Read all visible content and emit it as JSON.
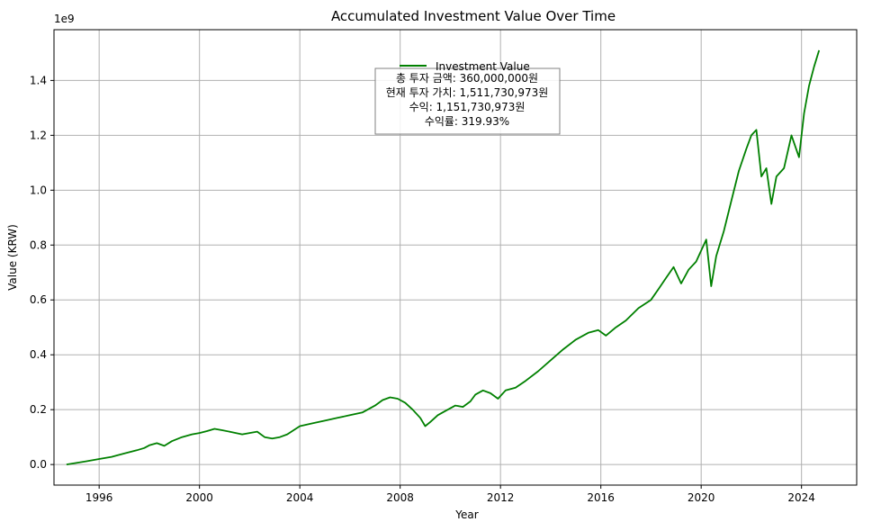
{
  "chart_data": {
    "type": "line",
    "title": "Accumulated Investment Value Over Time",
    "xlabel": "Year",
    "ylabel": "Value (KRW)",
    "y_offset_label": "1e9",
    "xlim": [
      1994.2,
      2026.2
    ],
    "ylim": [
      -0.075,
      1.585
    ],
    "y_unit_scale": "1e9",
    "grid": true,
    "line_color": "#008000",
    "x_ticks": [
      1996,
      2000,
      2004,
      2008,
      2012,
      2016,
      2020,
      2024
    ],
    "x_tick_labels": [
      "1996",
      "2000",
      "2004",
      "2008",
      "2012",
      "2016",
      "2020",
      "2024"
    ],
    "y_ticks": [
      0.0,
      0.2,
      0.4,
      0.6,
      0.8,
      1.0,
      1.2,
      1.4
    ],
    "y_tick_labels": [
      "0.0",
      "0.2",
      "0.4",
      "0.6",
      "0.8",
      "1.0",
      "1.2",
      "1.4"
    ],
    "legend": {
      "placement": "upper center",
      "entries": [
        "Investment Value"
      ],
      "annotation_lines": [
        "총 투자 금액: 360,000,000원",
        "현재 투자 가치: 1,511,730,973원",
        "수익: 1,151,730,973원",
        "수익률: 319.93%"
      ]
    },
    "series": [
      {
        "name": "Investment Value",
        "x": [
          1994.7,
          1995.5,
          1996.0,
          1996.5,
          1997.0,
          1997.5,
          1997.8,
          1998.0,
          1998.3,
          1998.6,
          1998.9,
          1999.3,
          1999.7,
          2000.0,
          2000.3,
          2000.6,
          2000.9,
          2001.3,
          2001.7,
          2002.0,
          2002.3,
          2002.6,
          2002.9,
          2003.2,
          2003.5,
          2004.0,
          2004.5,
          2005.0,
          2005.5,
          2006.0,
          2006.5,
          2007.0,
          2007.3,
          2007.6,
          2007.9,
          2008.2,
          2008.5,
          2008.8,
          2009.0,
          2009.2,
          2009.5,
          2009.8,
          2010.2,
          2010.5,
          2010.8,
          2011.0,
          2011.3,
          2011.6,
          2011.9,
          2012.2,
          2012.6,
          2013.0,
          2013.5,
          2014.0,
          2014.5,
          2015.0,
          2015.5,
          2015.9,
          2016.2,
          2016.6,
          2017.0,
          2017.5,
          2018.0,
          2018.3,
          2018.6,
          2018.9,
          2019.2,
          2019.5,
          2019.8,
          2020.0,
          2020.2,
          2020.4,
          2020.6,
          2020.9,
          2021.2,
          2021.5,
          2021.8,
          2022.0,
          2022.2,
          2022.4,
          2022.6,
          2022.8,
          2023.0,
          2023.3,
          2023.6,
          2023.9,
          2024.1,
          2024.3,
          2024.5,
          2024.7
        ],
        "values": [
          0.0,
          0.012,
          0.02,
          0.028,
          0.04,
          0.052,
          0.06,
          0.07,
          0.078,
          0.068,
          0.085,
          0.1,
          0.11,
          0.115,
          0.122,
          0.13,
          0.125,
          0.118,
          0.11,
          0.115,
          0.12,
          0.1,
          0.095,
          0.1,
          0.11,
          0.14,
          0.15,
          0.16,
          0.17,
          0.18,
          0.19,
          0.215,
          0.235,
          0.245,
          0.24,
          0.225,
          0.2,
          0.17,
          0.14,
          0.155,
          0.18,
          0.195,
          0.215,
          0.21,
          0.23,
          0.255,
          0.27,
          0.26,
          0.24,
          0.27,
          0.28,
          0.305,
          0.34,
          0.38,
          0.42,
          0.455,
          0.48,
          0.49,
          0.47,
          0.5,
          0.525,
          0.57,
          0.6,
          0.64,
          0.68,
          0.72,
          0.66,
          0.71,
          0.74,
          0.78,
          0.82,
          0.65,
          0.76,
          0.85,
          0.96,
          1.07,
          1.15,
          1.2,
          1.22,
          1.05,
          1.08,
          0.95,
          1.05,
          1.08,
          1.2,
          1.12,
          1.28,
          1.38,
          1.45,
          1.51
        ]
      }
    ]
  }
}
